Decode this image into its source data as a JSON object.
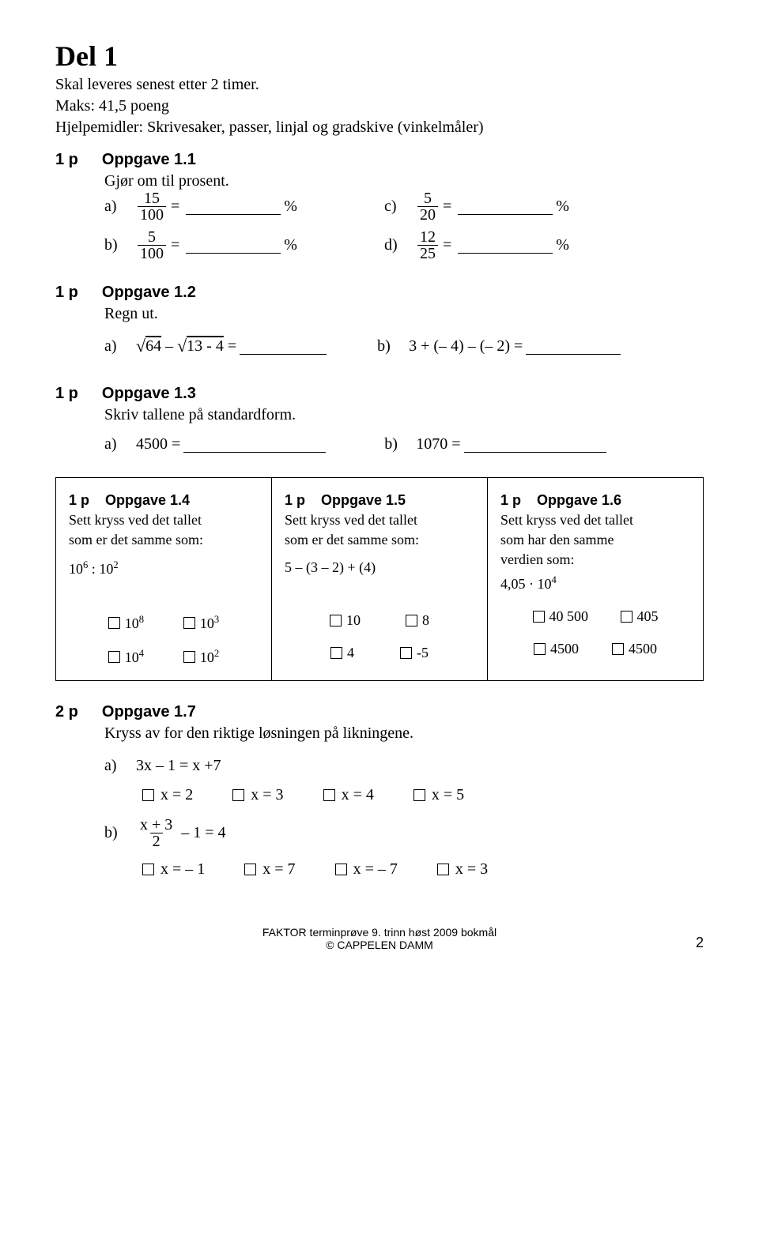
{
  "title": "Del 1",
  "intro": {
    "line1": "Skal leveres senest etter 2 timer.",
    "line2": "Maks: 41,5 poeng",
    "line3": "Hjelpemidler: Skrivesaker, passer, linjal og gradskive (vinkelmåler)"
  },
  "q1_1": {
    "points": "1 p",
    "heading": "Oppgave 1.1",
    "text": "Gjør om til prosent.",
    "a_label": "a)",
    "a_num": "15",
    "a_den": "100",
    "a_unit": "%",
    "b_label": "b)",
    "b_num": "5",
    "b_den": "100",
    "b_unit": "%",
    "c_label": "c)",
    "c_num": "5",
    "c_den": "20",
    "c_unit": "%",
    "d_label": "d)",
    "d_num": "12",
    "d_den": "25",
    "d_unit": "%"
  },
  "q1_2": {
    "points": "1 p",
    "heading": "Oppgave 1.2",
    "text": "Regn ut.",
    "a_label": "a)",
    "a_expr_1": "64",
    "a_expr_2": "13 - 4",
    "b_label": "b)",
    "b_expr": "3 + (– 4) – (– 2) ="
  },
  "q1_3": {
    "points": "1 p",
    "heading": "Oppgave 1.3",
    "text": "Skriv tallene på standardform.",
    "a_label": "a)",
    "a_expr": "4500 =",
    "b_label": "b)",
    "b_expr": "1070 ="
  },
  "box1": {
    "points": "1 p",
    "heading": "Oppgave 1.4",
    "line1": "Sett kryss ved det tallet",
    "line2": "som er det samme som:",
    "expr_base1": "10",
    "expr_exp1": "6",
    "expr_op": " : ",
    "expr_base2": "10",
    "expr_exp2": "2",
    "o1": "10",
    "o1e": "8",
    "o2": "10",
    "o2e": "3",
    "o3": "10",
    "o3e": "4",
    "o4": "10",
    "o4e": "2"
  },
  "box2": {
    "points": "1 p",
    "heading": "Oppgave 1.5",
    "line1": "Sett kryss ved det tallet",
    "line2": "som er det samme som:",
    "expr": "5 – (3 – 2) + (4)",
    "o1": "10",
    "o2": "8",
    "o3": "4",
    "o4": "-5"
  },
  "box3": {
    "points": "1 p",
    "heading": "Oppgave 1.6",
    "line1": "Sett kryss ved det tallet",
    "line2": "som har den samme",
    "line3": "verdien som:",
    "expr_coef": "4,05 · 10",
    "expr_exp": "4",
    "o1": "40 500",
    "o2": "405",
    "o3": "4500",
    "o4": "4500"
  },
  "q1_7": {
    "points": "2 p",
    "heading": "Oppgave 1.7",
    "text": "Kryss av for den riktige løsningen på likningene.",
    "a_label": "a)",
    "a_expr": "3x – 1 = x +7",
    "a_o1": "x = 2",
    "a_o2": "x = 3",
    "a_o3": "x = 4",
    "a_o4": "x = 5",
    "b_label": "b)",
    "b_num": "x + 3",
    "b_den": "2",
    "b_rest": "– 1 = 4",
    "b_o1": "x = – 1",
    "b_o2": "x = 7",
    "b_o3": "x = – 7",
    "b_o4": "x = 3"
  },
  "footer": {
    "line1": "FAKTOR terminprøve 9. trinn høst 2009 bokmål",
    "line2": "© CAPPELEN DAMM",
    "page": "2"
  },
  "style": {
    "blank_short": "120px",
    "blank_med": "170px",
    "blank_long": "190px"
  }
}
